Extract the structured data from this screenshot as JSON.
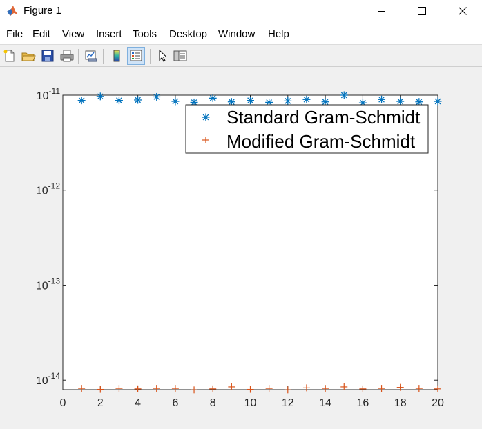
{
  "window": {
    "title": "Figure 1"
  },
  "menu": {
    "items": [
      "File",
      "Edit",
      "View",
      "Insert",
      "Tools",
      "Desktop",
      "Window",
      "Help"
    ]
  },
  "toolbar": {
    "icons": [
      "new-figure-icon",
      "open-file-icon",
      "save-icon",
      "print-icon",
      "link-plot-icon",
      "colorbar-icon",
      "legend-icon",
      "edit-plot-pointer-icon",
      "property-inspector-icon"
    ]
  },
  "colors": {
    "series1": "#0072BD",
    "series2": "#D95319",
    "axes": "#262626"
  },
  "chart_data": {
    "type": "scatter",
    "yscale": "log",
    "xlim": [
      0,
      20
    ],
    "ylim_exp": [
      -14.1,
      -11
    ],
    "ylim": [
      7.9e-15,
      1e-11
    ],
    "xticks": [
      "0",
      "2",
      "4",
      "6",
      "8",
      "10",
      "12",
      "14",
      "16",
      "18",
      "20"
    ],
    "xtick_values": [
      0,
      2,
      4,
      6,
      8,
      10,
      12,
      14,
      16,
      18,
      20
    ],
    "yticks": [
      {
        "base": "10",
        "exp": "-11",
        "value": 1e-11
      },
      {
        "base": "10",
        "exp": "-12",
        "value": 1e-12
      },
      {
        "base": "10",
        "exp": "-13",
        "value": 1e-13
      },
      {
        "base": "10",
        "exp": "-14",
        "value": 1e-14
      }
    ],
    "legend_position": "top-right",
    "grid": false,
    "series": [
      {
        "name": "Standard Gram-Schmidt",
        "marker": "*",
        "x": [
          1,
          2,
          3,
          4,
          5,
          6,
          7,
          8,
          9,
          10,
          11,
          12,
          13,
          14,
          15,
          16,
          17,
          18,
          19,
          20
        ],
        "y": [
          8.8e-12,
          9.7e-12,
          8.8e-12,
          8.9e-12,
          9.6e-12,
          8.6e-12,
          8.4e-12,
          9.3e-12,
          8.5e-12,
          8.8e-12,
          8.4e-12,
          8.7e-12,
          9e-12,
          8.5e-12,
          1e-11,
          8.3e-12,
          9e-12,
          8.6e-12,
          8.5e-12,
          8.6e-12
        ]
      },
      {
        "name": "Modified Gram-Schmidt",
        "marker": "+",
        "x": [
          1,
          2,
          3,
          4,
          5,
          6,
          7,
          8,
          9,
          10,
          11,
          12,
          13,
          14,
          15,
          16,
          17,
          18,
          19,
          20
        ],
        "y": [
          8.2e-15,
          8e-15,
          8.2e-15,
          8.1e-15,
          8.2e-15,
          8.2e-15,
          7.9e-15,
          8.1e-15,
          8.5e-15,
          8e-15,
          8.2e-15,
          7.9e-15,
          8.3e-15,
          8.2e-15,
          8.5e-15,
          8.1e-15,
          8.2e-15,
          8.4e-15,
          8.2e-15,
          8.1e-15
        ]
      }
    ]
  }
}
